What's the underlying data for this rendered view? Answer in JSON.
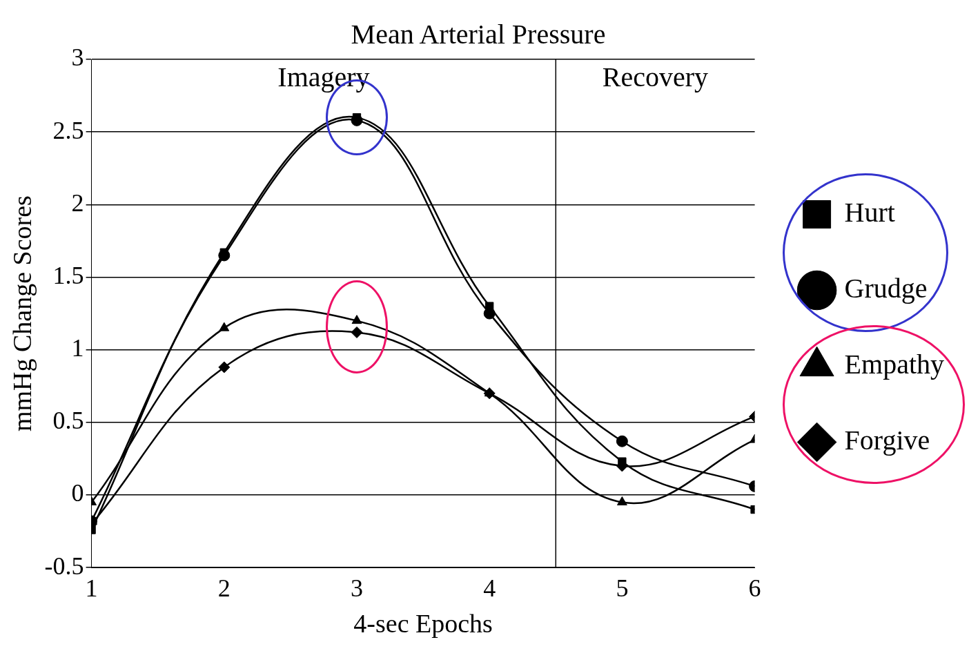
{
  "chart_data": {
    "type": "line",
    "title": "Mean Arterial Pressure",
    "xlabel": "4-sec Epochs",
    "ylabel": "mmHg Change Scores",
    "x": [
      1,
      2,
      3,
      4,
      5,
      6
    ],
    "xlim": [
      1,
      6
    ],
    "xticks": [
      1,
      2,
      3,
      4,
      5,
      6
    ],
    "ylim": [
      -0.5,
      3
    ],
    "yticks": [
      -0.5,
      0,
      0.5,
      1,
      1.5,
      2,
      2.5,
      3
    ],
    "series": [
      {
        "name": "Hurt",
        "color": "#000000",
        "marker": "square",
        "values": [
          -0.24,
          1.67,
          2.6,
          1.3,
          0.23,
          -0.1
        ]
      },
      {
        "name": "Grudge",
        "color": "#000000",
        "marker": "circle",
        "values": [
          -0.18,
          1.65,
          2.58,
          1.25,
          0.37,
          0.06
        ]
      },
      {
        "name": "Empathy",
        "color": "#000000",
        "marker": "triangle",
        "values": [
          -0.05,
          1.15,
          1.2,
          0.7,
          -0.05,
          0.38
        ]
      },
      {
        "name": "Forgive",
        "color": "#000000",
        "marker": "diamond",
        "values": [
          -0.2,
          0.88,
          1.12,
          0.7,
          0.2,
          0.54
        ]
      }
    ],
    "ref_lines": [
      {
        "axis": "x",
        "value": 4.5
      }
    ],
    "annotations": [
      "Imagery",
      "Recovery"
    ],
    "grid": "y",
    "legend": "right",
    "line_style": "solid"
  }
}
